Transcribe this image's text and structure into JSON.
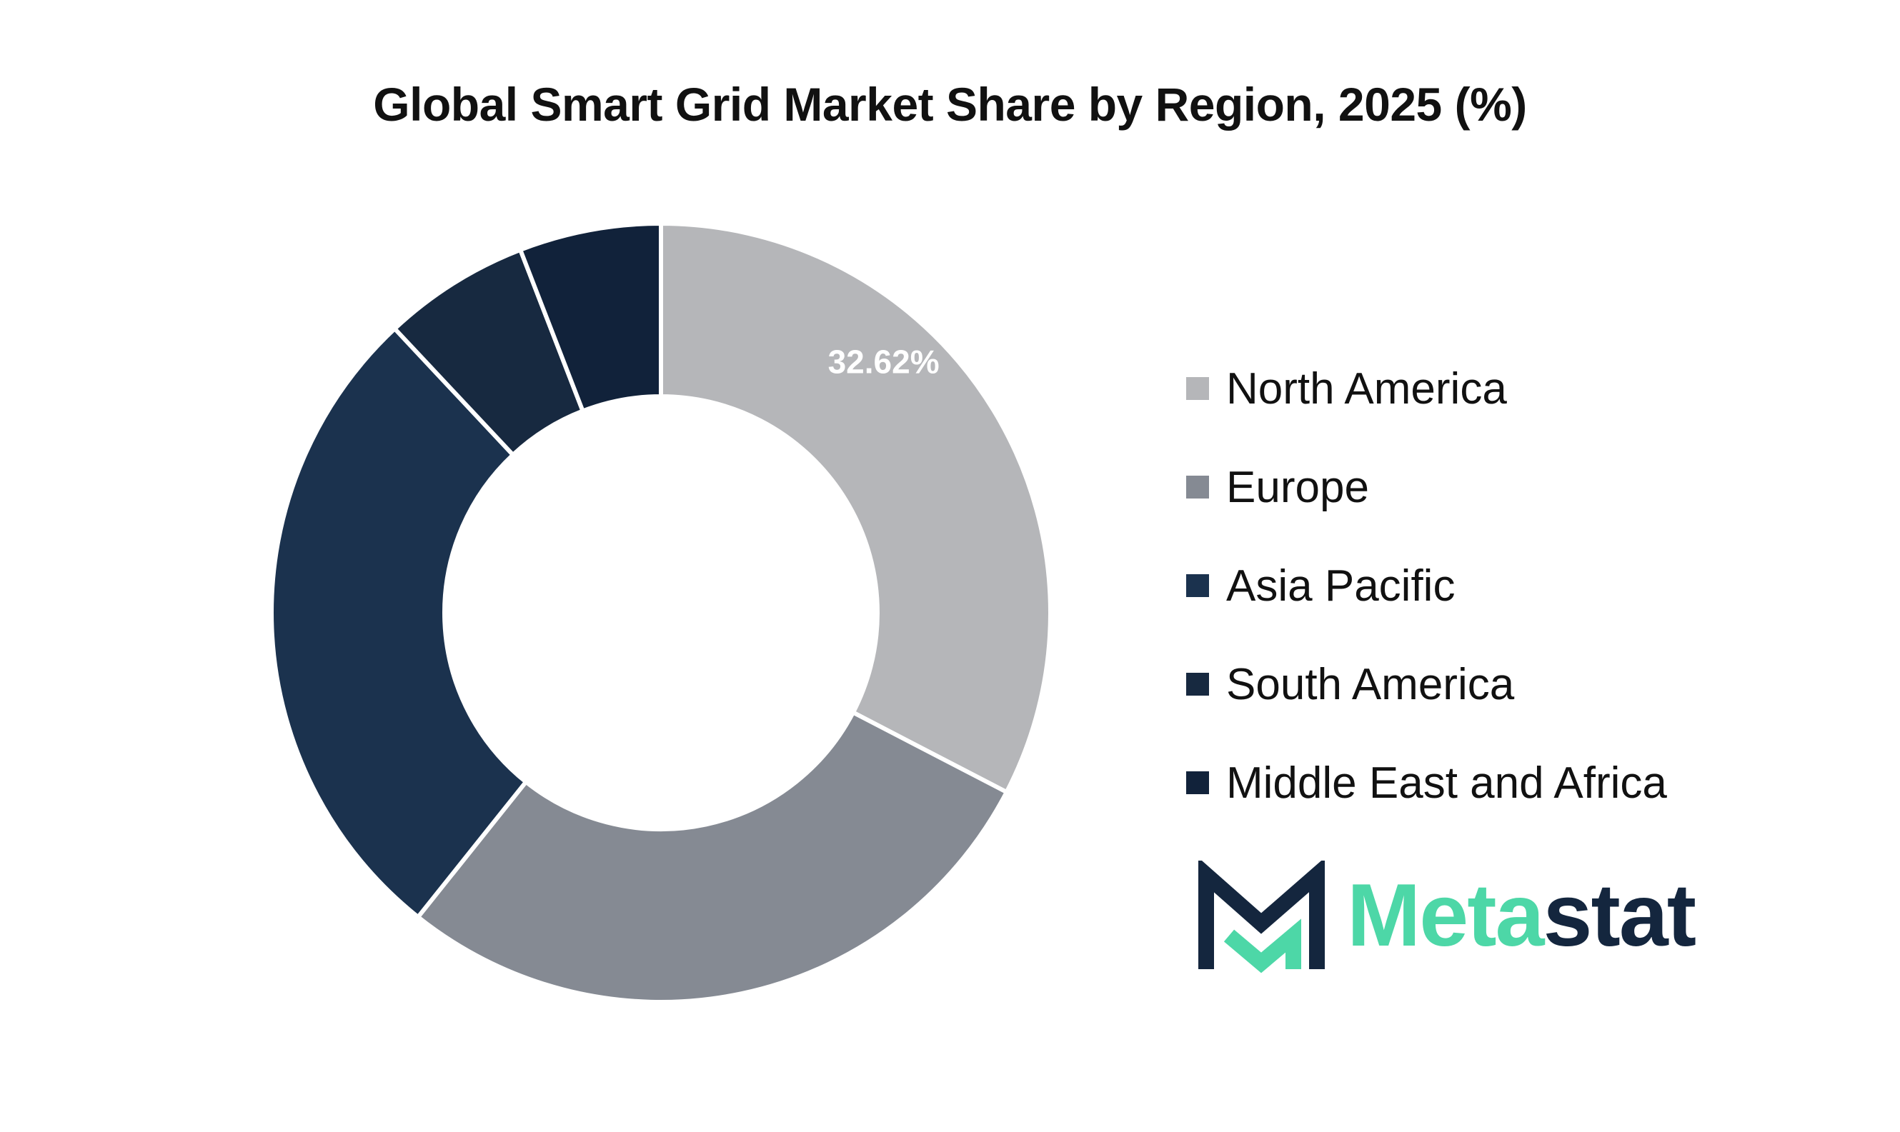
{
  "chart_data": {
    "type": "pie",
    "title": "Global Smart Grid Market Share by Region, 2025 (%)",
    "donut": true,
    "categories": [
      "North America",
      "Europe",
      "Asia Pacific",
      "South America",
      "Middle East and Africa"
    ],
    "values": [
      32.62,
      28.1,
      27.3,
      6.1,
      5.88
    ],
    "colors": [
      "#b5b6b9",
      "#858a93",
      "#1b324e",
      "#172940",
      "#11223a"
    ],
    "data_labels": [
      "32.62%",
      "",
      "",
      "",
      ""
    ],
    "data_label_color": "#ffffff",
    "legend_position": "right"
  },
  "logo": {
    "name": "Metastat",
    "part1": "Meta",
    "part2": "stat",
    "color1": "#4dd7a7",
    "color2": "#14263e"
  }
}
